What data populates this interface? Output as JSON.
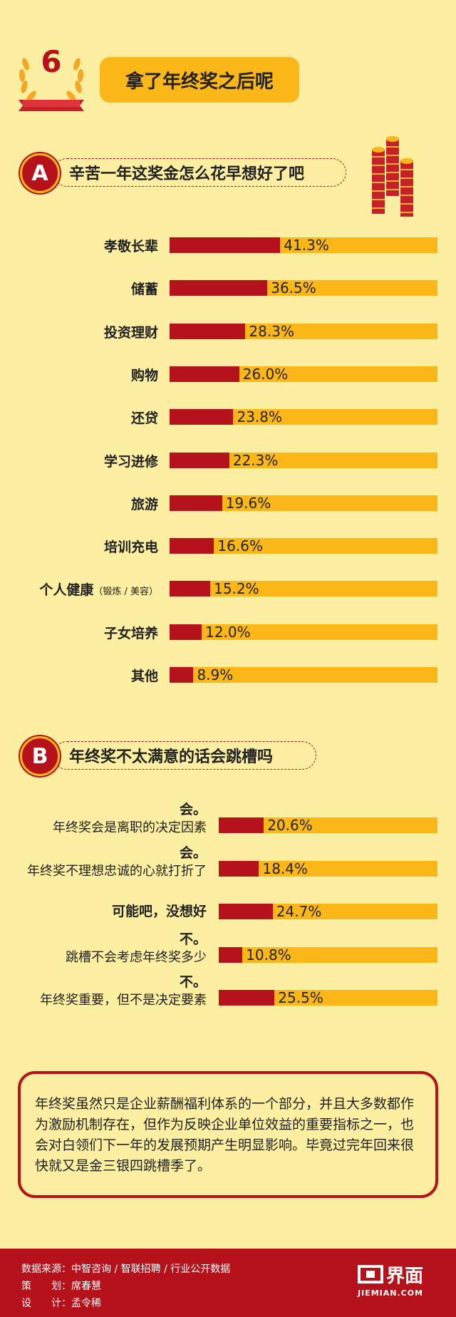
{
  "header": {
    "number": "6",
    "title": "拿了年终奖之后呢"
  },
  "section_a": {
    "letter": "A",
    "question": "辛苦一年这奖金怎么花早想好了吧"
  },
  "section_b": {
    "letter": "B",
    "question": "年终奖不太满意的话会跳槽吗"
  },
  "chart_data": [
    {
      "type": "bar",
      "title": "辛苦一年这奖金怎么花早想好了吧",
      "categories": [
        "孝敬长辈",
        "储蓄",
        "投资理财",
        "购物",
        "还贷",
        "学习进修",
        "旅游",
        "培训充电",
        "个人健康",
        "子女培养",
        "其他"
      ],
      "category_notes": {
        "个人健康": "（锻炼 / 美容）"
      },
      "values": [
        41.3,
        36.5,
        28.3,
        26.0,
        23.8,
        22.3,
        19.6,
        16.6,
        15.2,
        12.0,
        8.9
      ],
      "value_labels": [
        "41.3%",
        "36.5%",
        "28.3%",
        "26.0%",
        "23.8%",
        "22.3%",
        "19.6%",
        "16.6%",
        "15.2%",
        "12.0%",
        "8.9%"
      ],
      "xlim": [
        0,
        100
      ],
      "colors": {
        "fill": "#b5121b",
        "track": "#fbb717"
      }
    },
    {
      "type": "bar",
      "title": "年终奖不太满意的话会跳槽吗",
      "categories": [
        {
          "main": "会。",
          "sub": "年终奖会是离职的决定因素"
        },
        {
          "main": "会。",
          "sub": "年终奖不理想忠诚的心就打折了"
        },
        {
          "main": "可能吧，没想好",
          "sub": ""
        },
        {
          "main": "不。",
          "sub": "跳槽不会考虑年终奖多少"
        },
        {
          "main": "不。",
          "sub": "年终奖重要，但不是决定要素"
        }
      ],
      "values": [
        20.6,
        18.4,
        24.7,
        10.8,
        25.5
      ],
      "value_labels": [
        "20.6%",
        "18.4%",
        "24.7%",
        "10.8%",
        "25.5%"
      ],
      "xlim": [
        0,
        100
      ],
      "colors": {
        "fill": "#b5121b",
        "track": "#fbb717"
      }
    }
  ],
  "note": "年终奖虽然只是企业薪酬福利体系的一个部分，并且大多数都作为激励机制存在，但作为反映企业单位效益的重要指标之一，也会对白领们下一年的发展预期产生明显影响。毕竟过完年回来很快就又是金三银四跳槽季了。",
  "footer": {
    "source": "数据来源：中智咨询 / 智联招聘 / 行业公开数据",
    "planner": "策　　划：席春慧",
    "designer": "设　　计：孟令稀",
    "logo_cn": "界面",
    "logo_en": "JIEMIAN.COM"
  },
  "colors": {
    "background": "#fbeea0",
    "accent_red": "#b5121b",
    "accent_yellow": "#fbb717"
  }
}
